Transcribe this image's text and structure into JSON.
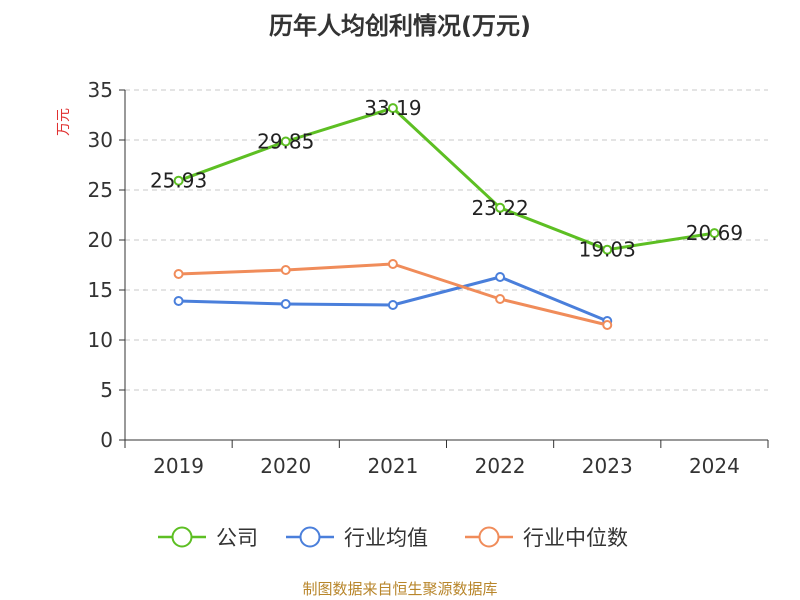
{
  "chart_data": {
    "type": "line",
    "title": "历年人均创利情况(万元)",
    "ylabel": "万元",
    "xlabel": "",
    "categories": [
      "2019",
      "2020",
      "2021",
      "2022",
      "2023",
      "2024"
    ],
    "ylim": [
      0,
      35
    ],
    "yticks": [
      0,
      5,
      10,
      15,
      20,
      25,
      30,
      35
    ],
    "grid": true,
    "legend_position": "bottom",
    "series": [
      {
        "name": "公司",
        "color": "#5dbf23",
        "values": [
          25.93,
          29.85,
          33.19,
          23.22,
          19.03,
          20.69
        ],
        "labels": [
          "25.93",
          "29.85",
          "33.19",
          "23.22",
          "19.03",
          "20.69"
        ]
      },
      {
        "name": "行业均值",
        "color": "#4a7fdb",
        "values": [
          13.9,
          13.6,
          13.5,
          16.3,
          11.9,
          null
        ]
      },
      {
        "name": "行业中位数",
        "color": "#f08c5a",
        "values": [
          16.6,
          17.0,
          17.6,
          14.1,
          11.5,
          null
        ]
      }
    ]
  },
  "source": "制图数据来自恒生聚源数据库"
}
